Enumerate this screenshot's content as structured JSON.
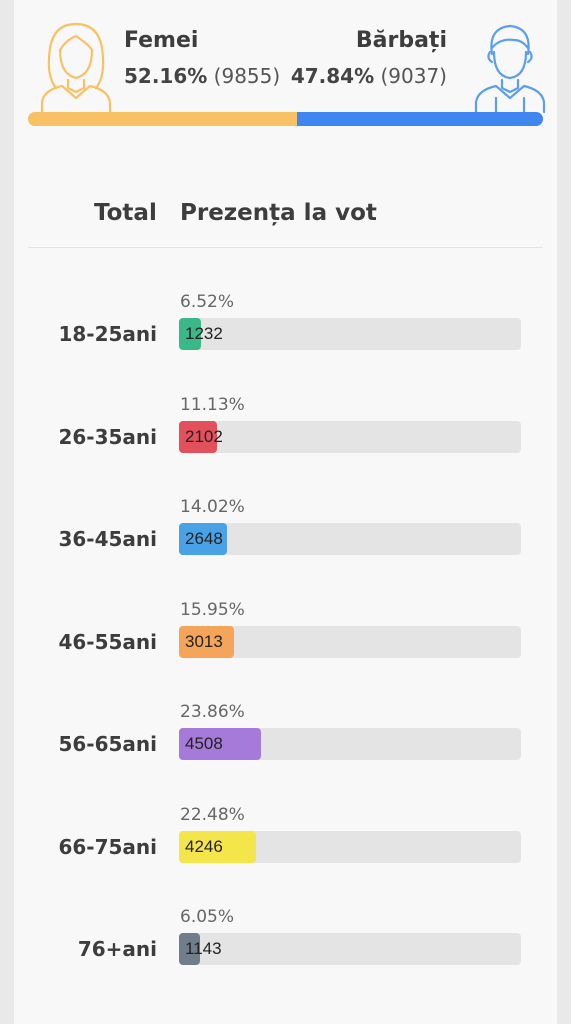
{
  "gender": {
    "female": {
      "label": "Femei",
      "percent": "52.16%",
      "count": "(9855)",
      "share": 52.16,
      "color": "#f8c164"
    },
    "male": {
      "label": "Bărbați",
      "percent": "47.84%",
      "count": "(9037)",
      "share": 47.84,
      "color": "#3f86f0"
    }
  },
  "table": {
    "total_header": "Total",
    "presence_header": "Prezența la vot"
  },
  "age_groups": [
    {
      "label": "18-25ani",
      "percent": "6.52%",
      "count": "1232",
      "share": 6.52,
      "color": "#3bb887"
    },
    {
      "label": "26-35ani",
      "percent": "11.13%",
      "count": "2102",
      "share": 11.13,
      "color": "#e2505c"
    },
    {
      "label": "36-45ani",
      "percent": "14.02%",
      "count": "2648",
      "share": 14.02,
      "color": "#4aa2e6"
    },
    {
      "label": "46-55ani",
      "percent": "15.95%",
      "count": "3013",
      "share": 15.95,
      "color": "#f5a55a"
    },
    {
      "label": "56-65ani",
      "percent": "23.86%",
      "count": "4508",
      "share": 23.86,
      "color": "#a57ad9"
    },
    {
      "label": "66-75ani",
      "percent": "22.48%",
      "count": "4246",
      "share": 22.48,
      "color": "#f4e64a"
    },
    {
      "label": "76+ani",
      "percent": "6.05%",
      "count": "1143",
      "share": 6.05,
      "color": "#6f7e8a"
    }
  ]
}
